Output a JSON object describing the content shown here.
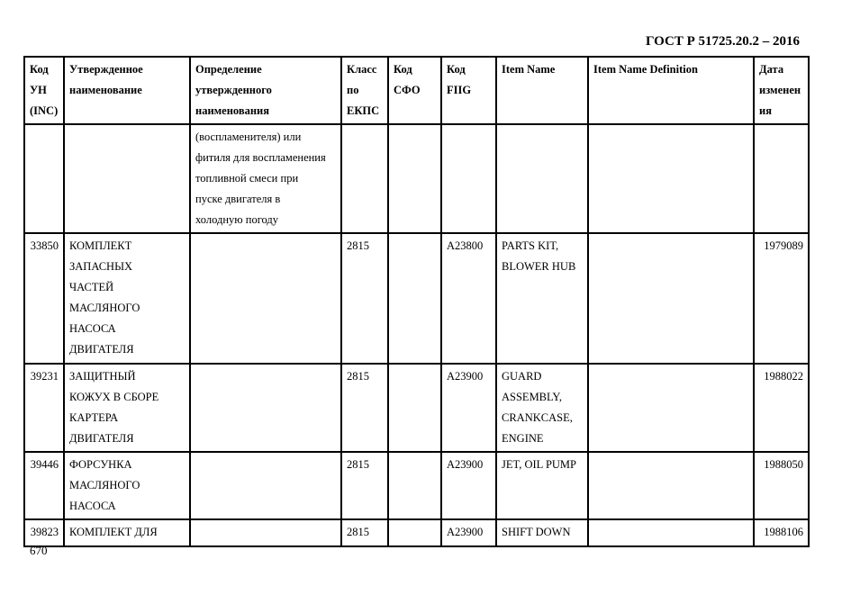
{
  "doc_id": "ГОСТ Р 51725.20.2 – 2016",
  "page_number": "670",
  "table": {
    "headers": [
      "Код\nУН\n(INC)",
      "Утвержденное\nнаименование",
      "Определение\nутвержденного\nнаименования",
      "Класс\nпо\nЕКПС",
      "Код\nСФО",
      "Код\nFIIG",
      "Item Name",
      "Item Name Definition",
      "Дата\nизменен\nия"
    ],
    "rows": [
      [
        "",
        "",
        "(воспламенителя) или\nфитиля для воспламенения\nтопливной смеси при\nпуске двигателя в\nхолодную погоду",
        "",
        "",
        "",
        "",
        "",
        ""
      ],
      [
        "33850",
        "КОМПЛЕКТ\nЗАПАСНЫХ\nЧАСТЕЙ\nМАСЛЯНОГО\nНАСОСА\nДВИГАТЕЛЯ",
        "",
        "2815",
        "",
        "A23800",
        "PARTS KIT,\nBLOWER HUB",
        "",
        "1979089"
      ],
      [
        "39231",
        "ЗАЩИТНЫЙ\nКОЖУХ В СБОРЕ\nКАРТЕРА\nДВИГАТЕЛЯ",
        "",
        "2815",
        "",
        "A23900",
        "GUARD\nASSEMBLY,\nCRANKCASE,\nENGINE",
        "",
        "1988022"
      ],
      [
        "39446",
        "ФОРСУНКА\nМАСЛЯНОГО\nНАСОСА",
        "",
        "2815",
        "",
        "A23900",
        "JET, OIL PUMP",
        "",
        "1988050"
      ],
      [
        "39823",
        "КОМПЛЕКТ ДЛЯ",
        "",
        "2815",
        "",
        "A23900",
        "SHIFT DOWN",
        "",
        "1988106"
      ]
    ]
  }
}
